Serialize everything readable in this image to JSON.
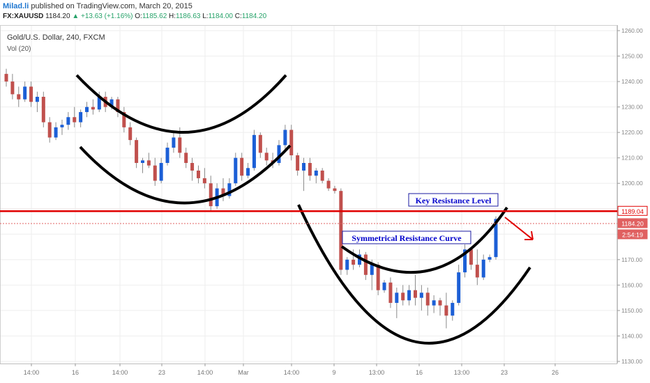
{
  "header": {
    "author": "Milad.li",
    "published": "published on TradingView.com, March 20, 2015",
    "symbol": "FX:XAUUSD",
    "price": "1184.20",
    "change": "▲ +13.63 (+1.16%)",
    "o_label": "O:",
    "o": "1185.62",
    "h_label": "H:",
    "h": "1186.63",
    "l_label": "L:",
    "l": "1184.00",
    "c_label": "C:",
    "c": "1184.20"
  },
  "chart_data": {
    "type": "candlestick",
    "title": "Gold/U.S. Dollar, 240, FXCM",
    "subtitle": "Vol (20)",
    "ylim": [
      1130,
      1260
    ],
    "y_ticks": [
      "1260.00",
      "1250.00",
      "1240.00",
      "1230.00",
      "1220.00",
      "1210.00",
      "1200.00",
      "1190.00",
      "1180.00",
      "1170.00",
      "1160.00",
      "1150.00",
      "1140.00",
      "1130.00"
    ],
    "x_ticks": [
      "14:00",
      "16",
      "14:00",
      "23",
      "14:00",
      "Mar",
      "14:00",
      "9",
      "13:00",
      "16",
      "13:00",
      "23",
      "26"
    ],
    "price_labels": [
      {
        "value": 1189.04,
        "text": "1189.04",
        "color": "#e00000"
      },
      {
        "value": 1184.2,
        "text": "1184.20",
        "color": "#ffffff"
      },
      {
        "value": 1181.0,
        "text": "2:54:19",
        "color": "#ffffff"
      }
    ],
    "resistance_level": 1189.04,
    "current_price": 1184.2,
    "annotations": [
      "Key Resistance Level",
      "Symmetrical Resistance Curve"
    ],
    "colors": {
      "up": "#1c5fd6",
      "down": "#c0504d",
      "resistance": "#e00000",
      "curve": "#000000",
      "label_text": "#0000cc",
      "grid": "#eeeeee"
    },
    "grid": true,
    "candles": [
      [
        1243,
        1245,
        1238,
        1240
      ],
      [
        1240,
        1243,
        1233,
        1235
      ],
      [
        1235,
        1238,
        1230,
        1233
      ],
      [
        1233,
        1240,
        1232,
        1238
      ],
      [
        1238,
        1240,
        1230,
        1232
      ],
      [
        1232,
        1236,
        1228,
        1234
      ],
      [
        1234,
        1236,
        1222,
        1224
      ],
      [
        1224,
        1226,
        1216,
        1218
      ],
      [
        1218,
        1224,
        1217,
        1222
      ],
      [
        1222,
        1225,
        1219,
        1223
      ],
      [
        1223,
        1228,
        1221,
        1226
      ],
      [
        1226,
        1230,
        1222,
        1224
      ],
      [
        1224,
        1229,
        1222,
        1228
      ],
      [
        1228,
        1232,
        1226,
        1230
      ],
      [
        1230,
        1233,
        1227,
        1229
      ],
      [
        1229,
        1236,
        1228,
        1234
      ],
      [
        1234,
        1236,
        1228,
        1230
      ],
      [
        1230,
        1234,
        1229,
        1233
      ],
      [
        1233,
        1234,
        1226,
        1228
      ],
      [
        1228,
        1230,
        1220,
        1222
      ],
      [
        1222,
        1224,
        1215,
        1217
      ],
      [
        1217,
        1218,
        1206,
        1208
      ],
      [
        1208,
        1210,
        1204,
        1209
      ],
      [
        1209,
        1212,
        1206,
        1207
      ],
      [
        1207,
        1210,
        1199,
        1201
      ],
      [
        1201,
        1210,
        1200,
        1208
      ],
      [
        1208,
        1216,
        1207,
        1214
      ],
      [
        1214,
        1220,
        1212,
        1218
      ],
      [
        1218,
        1222,
        1210,
        1212
      ],
      [
        1212,
        1214,
        1206,
        1208
      ],
      [
        1208,
        1210,
        1201,
        1205
      ],
      [
        1205,
        1207,
        1200,
        1202
      ],
      [
        1202,
        1206,
        1198,
        1200
      ],
      [
        1200,
        1203,
        1189,
        1191
      ],
      [
        1191,
        1200,
        1190,
        1198
      ],
      [
        1198,
        1202,
        1193,
        1195
      ],
      [
        1195,
        1202,
        1194,
        1200
      ],
      [
        1200,
        1212,
        1199,
        1210
      ],
      [
        1210,
        1212,
        1201,
        1203
      ],
      [
        1203,
        1208,
        1202,
        1206
      ],
      [
        1206,
        1221,
        1205,
        1219
      ],
      [
        1219,
        1220,
        1210,
        1212
      ],
      [
        1212,
        1214,
        1207,
        1209
      ],
      [
        1209,
        1212,
        1206,
        1208
      ],
      [
        1208,
        1217,
        1207,
        1215
      ],
      [
        1215,
        1223,
        1213,
        1221
      ],
      [
        1221,
        1223,
        1209,
        1211
      ],
      [
        1211,
        1212,
        1203,
        1205
      ],
      [
        1205,
        1210,
        1197,
        1208
      ],
      [
        1208,
        1210,
        1201,
        1203
      ],
      [
        1203,
        1206,
        1200,
        1205
      ],
      [
        1205,
        1206,
        1200,
        1201
      ],
      [
        1201,
        1202,
        1197,
        1198
      ],
      [
        1198,
        1199,
        1196,
        1197
      ],
      [
        1197,
        1198,
        1164,
        1166
      ],
      [
        1166,
        1171,
        1164,
        1170
      ],
      [
        1170,
        1174,
        1166,
        1168
      ],
      [
        1168,
        1174,
        1167,
        1172
      ],
      [
        1172,
        1173,
        1162,
        1164
      ],
      [
        1164,
        1170,
        1158,
        1168
      ],
      [
        1168,
        1169,
        1156,
        1158
      ],
      [
        1158,
        1162,
        1157,
        1161
      ],
      [
        1161,
        1163,
        1151,
        1153
      ],
      [
        1153,
        1159,
        1147,
        1157
      ],
      [
        1157,
        1160,
        1152,
        1154
      ],
      [
        1154,
        1160,
        1152,
        1158
      ],
      [
        1158,
        1164,
        1152,
        1155
      ],
      [
        1155,
        1160,
        1150,
        1157
      ],
      [
        1157,
        1159,
        1148,
        1152
      ],
      [
        1152,
        1156,
        1149,
        1154
      ],
      [
        1154,
        1155,
        1148,
        1152
      ],
      [
        1152,
        1157,
        1143,
        1148
      ],
      [
        1148,
        1154,
        1146,
        1153
      ],
      [
        1153,
        1168,
        1152,
        1165
      ],
      [
        1165,
        1176,
        1163,
        1174
      ],
      [
        1174,
        1175,
        1166,
        1168
      ],
      [
        1168,
        1174,
        1160,
        1163
      ],
      [
        1163,
        1172,
        1162,
        1170
      ],
      [
        1170,
        1172,
        1169,
        1171
      ],
      [
        1171,
        1187,
        1170,
        1186
      ]
    ]
  }
}
